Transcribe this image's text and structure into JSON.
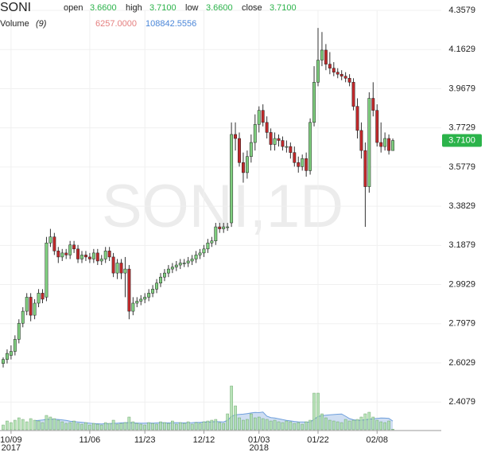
{
  "chart_data": {
    "type": "candlestick",
    "title": "SONI",
    "watermark": "SONI,1D",
    "legend": {
      "labels": [
        "open",
        "high",
        "low",
        "close"
      ],
      "values": [
        3.66,
        3.71,
        3.66,
        3.71
      ],
      "value_labels": [
        "3.6600",
        "3.7100",
        "3.6600",
        "3.7100"
      ],
      "color": "#2bb34a"
    },
    "volume_legend": {
      "name": "Volume",
      "param": "(9)",
      "values": [
        6257,
        108842.5556
      ],
      "value_labels": [
        "6257.0000",
        "108842.5556"
      ],
      "colors": [
        "#e57f7f",
        "#4a86d8"
      ]
    },
    "last_price": {
      "value": 3.71,
      "label": "3.7100"
    },
    "up_color": "#7fcf7f",
    "down_color": "#c0292b",
    "wick_color": "#333333",
    "ylim": [
      2.27,
      4.3579
    ],
    "yticks": [
      4.3579,
      4.1629,
      3.9679,
      3.7729,
      3.5779,
      3.3829,
      3.1879,
      2.9929,
      2.7979,
      2.6029,
      2.4079
    ],
    "grid": true,
    "categories": [
      null,
      null,
      "10/09",
      null,
      null,
      null,
      null,
      null,
      null,
      null,
      null,
      null,
      null,
      null,
      null,
      null,
      null,
      null,
      null,
      null,
      null,
      null,
      "11/06",
      null,
      null,
      null,
      null,
      null,
      null,
      null,
      null,
      null,
      null,
      null,
      null,
      null,
      "11/23",
      null,
      null,
      null,
      null,
      null,
      null,
      null,
      null,
      null,
      null,
      null,
      null,
      null,
      null,
      "12/12",
      null,
      null,
      null,
      null,
      null,
      null,
      null,
      null,
      null,
      null,
      null,
      null,
      null,
      "01/03",
      null,
      null,
      null,
      null,
      null,
      null,
      null,
      null,
      null,
      null,
      null,
      null,
      null,
      null,
      "01/22",
      null,
      null,
      null,
      null,
      null,
      null,
      null,
      null,
      null,
      null,
      null,
      null,
      null,
      null,
      "02/08",
      null,
      null,
      null,
      null
    ],
    "x_year_labels": [
      null,
      null,
      "2017",
      null,
      null,
      null,
      null,
      null,
      null,
      null,
      null,
      null,
      null,
      null,
      null,
      null,
      null,
      null,
      null,
      null,
      null,
      null,
      null,
      null,
      null,
      null,
      null,
      null,
      null,
      null,
      null,
      null,
      null,
      null,
      null,
      null,
      null,
      null,
      null,
      null,
      null,
      null,
      null,
      null,
      null,
      null,
      null,
      null,
      null,
      null,
      null,
      null,
      null,
      null,
      null,
      null,
      null,
      null,
      null,
      null,
      null,
      null,
      null,
      null,
      null,
      "2018",
      null,
      null,
      null,
      null,
      null,
      null,
      null,
      null,
      null,
      null,
      null,
      null,
      null,
      null,
      null,
      null,
      null,
      null,
      null,
      null,
      null,
      null,
      null,
      null,
      null,
      null,
      null,
      null,
      null,
      null,
      null,
      null,
      null,
      null
    ],
    "ohlc": {
      "open": [
        2.6,
        2.62,
        2.64,
        2.66,
        2.72,
        2.8,
        2.86,
        2.93,
        2.84,
        2.9,
        2.95,
        2.93,
        3.2,
        3.23,
        3.16,
        3.13,
        3.15,
        3.14,
        3.19,
        3.17,
        3.12,
        3.14,
        3.13,
        3.12,
        3.15,
        3.11,
        3.12,
        3.16,
        3.13,
        3.05,
        3.1,
        3.05,
        3.07,
        2.86,
        2.9,
        2.91,
        2.92,
        2.93,
        2.95,
        2.97,
        3.0,
        3.03,
        3.05,
        3.07,
        3.08,
        3.09,
        3.1,
        3.1,
        3.11,
        3.12,
        3.14,
        3.15,
        3.17,
        3.2,
        3.21,
        3.28,
        3.27,
        3.28,
        3.3,
        3.74,
        3.72,
        3.6,
        3.55,
        3.63,
        3.7,
        3.79,
        3.86,
        3.8,
        3.75,
        3.69,
        3.72,
        3.71,
        3.68,
        3.68,
        3.65,
        3.6,
        3.58,
        3.62,
        3.56,
        3.8,
        4.0,
        4.11,
        4.16,
        4.09,
        4.07,
        4.05,
        4.04,
        4.03,
        4.02,
        4.0,
        3.88,
        3.76,
        3.66,
        3.48,
        3.92,
        3.86,
        3.7,
        3.68,
        3.72,
        3.66
      ],
      "high": [
        2.63,
        2.67,
        2.69,
        2.74,
        2.82,
        2.88,
        2.95,
        2.95,
        2.92,
        2.97,
        2.97,
        3.23,
        3.27,
        3.25,
        3.18,
        3.17,
        3.17,
        3.21,
        3.21,
        3.19,
        3.16,
        3.16,
        3.15,
        3.17,
        3.17,
        3.14,
        3.18,
        3.18,
        3.15,
        3.12,
        3.12,
        3.13,
        3.09,
        2.93,
        2.93,
        2.94,
        2.95,
        2.97,
        2.99,
        3.02,
        3.05,
        3.07,
        3.09,
        3.1,
        3.11,
        3.12,
        3.12,
        3.13,
        3.14,
        3.16,
        3.17,
        3.19,
        3.22,
        3.23,
        3.3,
        3.3,
        3.3,
        3.3,
        3.8,
        3.8,
        3.75,
        3.65,
        3.66,
        3.74,
        3.84,
        3.88,
        3.89,
        3.83,
        3.77,
        3.75,
        3.74,
        3.73,
        3.71,
        3.7,
        3.68,
        3.63,
        3.64,
        3.65,
        3.82,
        4.08,
        4.27,
        4.25,
        4.19,
        4.15,
        4.1,
        4.07,
        4.06,
        4.05,
        4.04,
        4.02,
        3.92,
        3.8,
        3.7,
        3.95,
        4.0,
        3.89,
        3.8,
        3.75,
        3.74,
        3.72
      ],
      "low": [
        2.58,
        2.6,
        2.62,
        2.64,
        2.7,
        2.78,
        2.84,
        2.81,
        2.82,
        2.88,
        2.9,
        2.91,
        3.18,
        3.14,
        3.1,
        3.11,
        3.12,
        3.12,
        3.15,
        3.1,
        3.1,
        3.11,
        3.1,
        3.1,
        3.09,
        3.09,
        3.1,
        3.11,
        3.03,
        3.02,
        3.02,
        2.93,
        2.82,
        2.84,
        2.88,
        2.89,
        2.9,
        2.91,
        2.93,
        2.95,
        2.98,
        3.01,
        3.03,
        3.05,
        3.06,
        3.07,
        3.08,
        3.08,
        3.09,
        3.1,
        3.12,
        3.13,
        3.15,
        3.18,
        3.19,
        3.25,
        3.25,
        3.26,
        3.28,
        3.66,
        3.58,
        3.5,
        3.52,
        3.6,
        3.66,
        3.75,
        3.78,
        3.72,
        3.66,
        3.66,
        3.68,
        3.66,
        3.65,
        3.62,
        3.58,
        3.55,
        3.56,
        3.53,
        3.54,
        3.78,
        3.98,
        4.08,
        4.06,
        4.04,
        4.03,
        4.02,
        4.01,
        4.0,
        3.98,
        3.86,
        3.72,
        3.62,
        3.28,
        3.45,
        3.83,
        3.68,
        3.65,
        3.66,
        3.64,
        3.66
      ],
      "close": [
        2.62,
        2.65,
        2.66,
        2.72,
        2.8,
        2.86,
        2.93,
        2.84,
        2.9,
        2.95,
        2.92,
        3.2,
        3.23,
        3.16,
        3.13,
        3.15,
        3.14,
        3.19,
        3.17,
        3.12,
        3.14,
        3.13,
        3.12,
        3.15,
        3.11,
        3.12,
        3.16,
        3.13,
        3.05,
        3.1,
        3.05,
        3.07,
        2.86,
        2.9,
        2.91,
        2.92,
        2.93,
        2.95,
        2.97,
        3.0,
        3.03,
        3.05,
        3.07,
        3.08,
        3.09,
        3.1,
        3.1,
        3.11,
        3.12,
        3.14,
        3.15,
        3.17,
        3.2,
        3.21,
        3.28,
        3.27,
        3.28,
        3.28,
        3.74,
        3.72,
        3.6,
        3.55,
        3.63,
        3.7,
        3.79,
        3.86,
        3.8,
        3.75,
        3.69,
        3.72,
        3.71,
        3.68,
        3.68,
        3.65,
        3.6,
        3.58,
        3.62,
        3.56,
        3.8,
        4.0,
        4.11,
        4.16,
        4.09,
        4.07,
        4.05,
        4.04,
        4.03,
        4.02,
        4.0,
        3.88,
        3.76,
        3.66,
        3.48,
        3.92,
        3.86,
        3.7,
        3.68,
        3.72,
        3.66,
        3.71
      ]
    },
    "volume": {
      "ylim": [
        0,
        600000
      ],
      "color": "#a8dca8",
      "ma_color": "#6f9fdc",
      "ma_fill": "#c3d6ef",
      "values": [
        60000,
        110000,
        90000,
        120000,
        150000,
        130000,
        100000,
        140000,
        120000,
        110000,
        90000,
        180000,
        160000,
        140000,
        120000,
        100000,
        80000,
        90000,
        110000,
        80000,
        70000,
        90000,
        60000,
        80000,
        70000,
        60000,
        90000,
        80000,
        120000,
        70000,
        80000,
        90000,
        160000,
        100000,
        80000,
        70000,
        60000,
        90000,
        80000,
        70000,
        100000,
        90000,
        80000,
        110000,
        70000,
        90000,
        80000,
        100000,
        70000,
        90000,
        80000,
        100000,
        110000,
        120000,
        130000,
        90000,
        80000,
        200000,
        550000,
        300000,
        150000,
        120000,
        130000,
        200000,
        150000,
        160000,
        140000,
        130000,
        110000,
        120000,
        100000,
        90000,
        110000,
        100000,
        80000,
        90000,
        70000,
        100000,
        120000,
        460000,
        460000,
        200000,
        150000,
        120000,
        110000,
        100000,
        90000,
        130000,
        110000,
        120000,
        130000,
        160000,
        200000,
        220000,
        160000,
        120000,
        100000,
        90000,
        110000,
        6257
      ],
      "ma_values": [
        null,
        null,
        null,
        null,
        null,
        null,
        null,
        null,
        114000,
        118000,
        123000,
        130000,
        133000,
        133000,
        129000,
        124000,
        117000,
        108000,
        103000,
        98000,
        94000,
        87000,
        82000,
        77000,
        75000,
        73000,
        76000,
        77000,
        80000,
        83000,
        86000,
        89000,
        90000,
        86000,
        84000,
        82000,
        82000,
        86000,
        83000,
        86000,
        87000,
        88000,
        86000,
        87000,
        89000,
        88000,
        86000,
        88000,
        89000,
        92000,
        93000,
        97000,
        96000,
        99000,
        103000,
        100000,
        98000,
        118000,
        168000,
        188000,
        192000,
        196000,
        203000,
        211000,
        218000,
        215000,
        222000,
        170000,
        153000,
        147000,
        138000,
        127000,
        118000,
        111000,
        104000,
        99000,
        98000,
        96000,
        97000,
        131000,
        166000,
        177000,
        182000,
        187000,
        191000,
        195000,
        198000,
        170000,
        140000,
        125000,
        118000,
        120000,
        125000,
        132000,
        138000,
        143000,
        147000,
        146000,
        142000,
        108842.5556
      ]
    }
  }
}
